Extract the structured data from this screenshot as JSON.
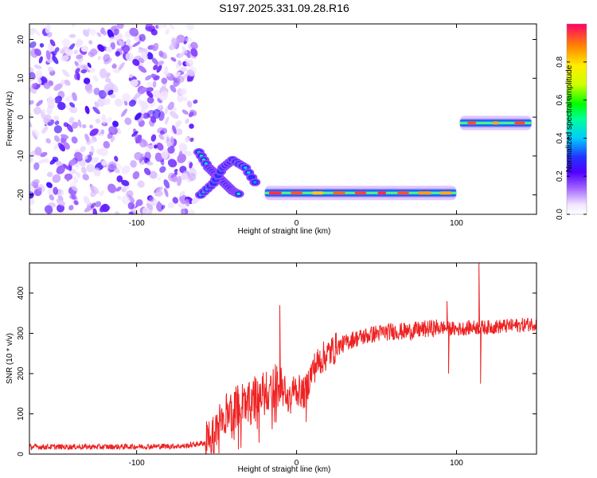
{
  "figure_title": "S197.2025.331.09.28.R16",
  "chart_data": [
    {
      "type": "heatmap",
      "title": "S197.2025.331.09.28.R16",
      "xlabel": "Height of straight line (km)",
      "ylabel": "Frequency (Hz)",
      "xlim": [
        -167,
        150
      ],
      "ylim": [
        -25,
        24
      ],
      "xticks": [
        -100,
        0,
        100
      ],
      "xtick_labels": [
        "-100",
        "0",
        "100"
      ],
      "yticks": [
        -20,
        -10,
        0,
        10,
        20
      ],
      "ytick_labels": [
        "-20",
        "-10",
        "0",
        "10",
        "20"
      ],
      "colorbar": {
        "label": "Normalized spectral amplitude",
        "range": [
          0.0,
          1.0
        ],
        "ticks": [
          0.0,
          0.2,
          0.4,
          0.6,
          0.8
        ],
        "tick_labels": [
          "0.0",
          "0.2",
          "0.4",
          "0.6",
          "0.8"
        ],
        "colormap": "rainbow"
      },
      "regions": [
        {
          "name": "noise",
          "x_range": [
            -167,
            -63
          ],
          "y_range": [
            -25,
            24
          ],
          "amplitude": [
            0.05,
            0.25
          ]
        },
        {
          "name": "rising-branch",
          "points": [
            [
              -61,
              -9
            ],
            [
              -55,
              -13
            ],
            [
              -50,
              -15
            ],
            [
              -45,
              -17
            ],
            [
              -40,
              -19
            ],
            [
              -35,
              -20
            ]
          ],
          "amplitude": 0.35
        },
        {
          "name": "descending-branch",
          "points": [
            [
              -60,
              -20
            ],
            [
              -52,
              -17
            ],
            [
              -46,
              -13
            ],
            [
              -40,
              -11
            ],
            [
              -32,
              -13
            ],
            [
              -24,
              -18
            ]
          ],
          "amplitude": 0.3
        },
        {
          "name": "main-track",
          "x_range": [
            -20,
            100
          ],
          "frequency": -19.5,
          "amplitude": 0.7
        },
        {
          "name": "upper-track",
          "x_range": [
            102,
            147
          ],
          "frequency": -1.5,
          "amplitude": 0.5
        }
      ]
    },
    {
      "type": "line",
      "xlabel": "Height of straight line (km)",
      "ylabel": "SNR (10 * v/v)",
      "xlim": [
        -167,
        150
      ],
      "ylim": [
        0,
        475
      ],
      "xticks": [
        -100,
        0,
        100
      ],
      "xtick_labels": [
        "-100",
        "0",
        "100"
      ],
      "yticks": [
        0,
        100,
        200,
        300,
        400
      ],
      "ytick_labels": [
        "0",
        "100",
        "200",
        "300",
        "400"
      ],
      "series": [
        {
          "name": "SNR",
          "color": "#ee2222",
          "x": [
            -167,
            -120,
            -70,
            -57,
            -50,
            -45,
            -40,
            -35,
            -30,
            -25,
            -20,
            -15,
            -10,
            -5,
            0,
            5,
            10,
            15,
            20,
            25,
            30,
            35,
            40,
            50,
            60,
            70,
            80,
            90,
            100,
            110,
            120,
            130,
            140,
            150
          ],
          "y": [
            18,
            18,
            20,
            28,
            60,
            100,
            110,
            130,
            120,
            150,
            150,
            170,
            165,
            150,
            160,
            150,
            210,
            235,
            250,
            265,
            275,
            285,
            290,
            300,
            305,
            305,
            310,
            315,
            310,
            315,
            315,
            318,
            320,
            325
          ],
          "spikes": [
            {
              "x": -10.5,
              "y": 370
            },
            {
              "x": 114,
              "y": 478
            },
            {
              "x": 115,
              "y": 175
            },
            {
              "x": 94,
              "y": 380
            },
            {
              "x": 95,
              "y": 200
            },
            {
              "x": 6,
              "y": 80
            }
          ]
        }
      ]
    }
  ]
}
